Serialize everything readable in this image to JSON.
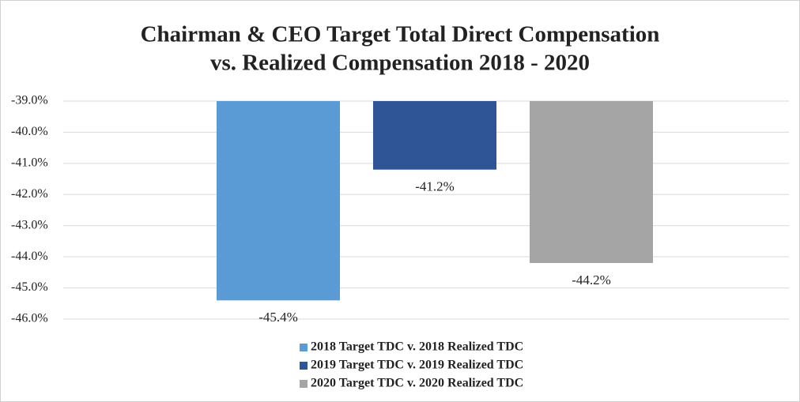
{
  "chart_data": {
    "type": "bar",
    "title": [
      "Chairman & CEO Target Total Direct Compensation",
      "vs. Realized Compensation 2018 - 2020"
    ],
    "categories": [
      null
    ],
    "series": [
      {
        "name": "2018 Target TDC v. 2018 Realized TDC",
        "color": "#5b9bd5",
        "values": [
          -45.4
        ],
        "value_labels": [
          "-45.4%"
        ]
      },
      {
        "name": "2019 Target TDC v. 2019 Realized TDC",
        "color": "#2f5597",
        "values": [
          -41.2
        ],
        "value_labels": [
          "-41.2%"
        ]
      },
      {
        "name": "2020 Target TDC v. 2020 Realized TDC",
        "color": "#a5a5a5",
        "values": [
          -44.2
        ],
        "value_labels": [
          "-44.2%"
        ]
      }
    ],
    "ylim": [
      -46,
      -39
    ],
    "yticks": [
      {
        "value": -39,
        "label": "-39.0%"
      },
      {
        "value": -40,
        "label": "-40.0%"
      },
      {
        "value": -41,
        "label": "-41.0%"
      },
      {
        "value": -42,
        "label": "-42.0%"
      },
      {
        "value": -43,
        "label": "-43.0%"
      },
      {
        "value": -44,
        "label": "-44.0%"
      },
      {
        "value": -45,
        "label": "-45.0%"
      },
      {
        "value": -46,
        "label": "-46.0%"
      }
    ],
    "grid": true,
    "legend": "bottom"
  }
}
